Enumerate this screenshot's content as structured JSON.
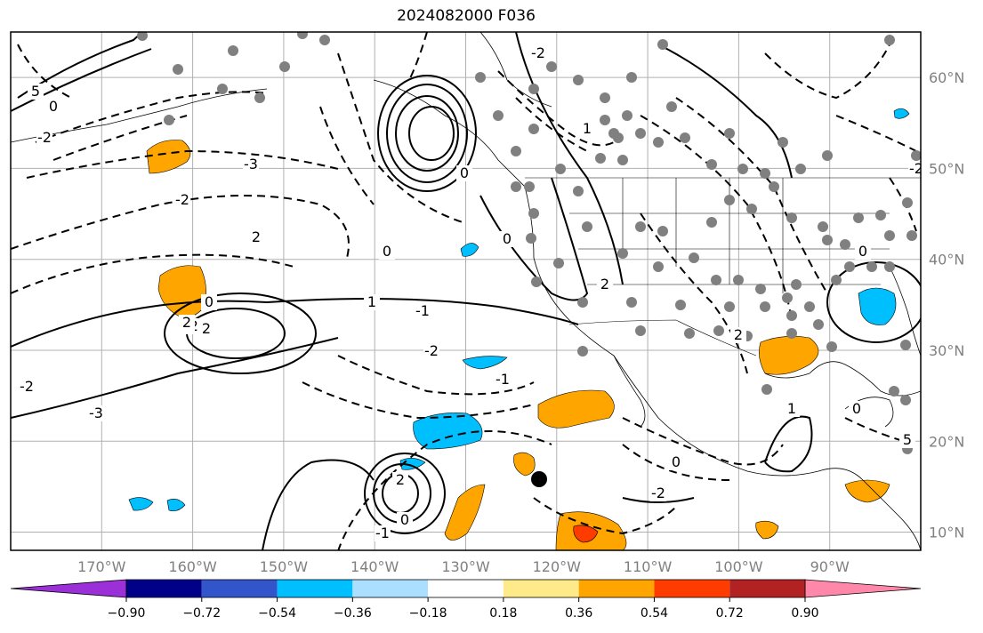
{
  "title": "2024082000 F036",
  "map": {
    "lon_range": [
      -180,
      -80
    ],
    "lat_range": [
      8,
      65
    ],
    "lat_labels": [
      "60°N",
      "50°N",
      "40°N",
      "30°N",
      "20°N",
      "10°N"
    ],
    "lat_values": [
      60,
      50,
      40,
      30,
      20,
      10
    ],
    "lon_labels": [
      "170°W",
      "160°W",
      "150°W",
      "140°W",
      "130°W",
      "120°W",
      "110°W",
      "100°W",
      "90°W"
    ],
    "lon_values": [
      -170,
      -160,
      -150,
      -140,
      -130,
      -120,
      -110,
      -100,
      -90
    ],
    "grid": true,
    "contour_labels": [
      "5",
      "0",
      "-2",
      "-3",
      "2",
      "-2",
      "0",
      "-1",
      "1",
      "0",
      "-2",
      "2",
      "-2",
      "-1",
      "0",
      "-2",
      "2",
      "0",
      "-1",
      "0",
      "0",
      "-2",
      "1",
      "2",
      "5",
      "0",
      "-2",
      "2",
      "1",
      "0",
      "-3",
      "2",
      "-2"
    ],
    "marker_color": "#808080",
    "storm_marker_color": "#000000"
  },
  "colorbar": {
    "colors": [
      "#9b30d8",
      "#000088",
      "#3355cc",
      "#00bfff",
      "#aadfff",
      "#ffffff",
      "#ffea8a",
      "#ffa500",
      "#ff3c00",
      "#b22222",
      "#ff88aa"
    ],
    "tick_labels": [
      "−0.90",
      "−0.72",
      "−0.54",
      "−0.36",
      "−0.18",
      "0.18",
      "0.36",
      "0.54",
      "0.72",
      "0.90"
    ],
    "tick_values": [
      -0.9,
      -0.72,
      -0.54,
      -0.36,
      -0.18,
      0.18,
      0.36,
      0.54,
      0.72,
      0.9
    ]
  }
}
